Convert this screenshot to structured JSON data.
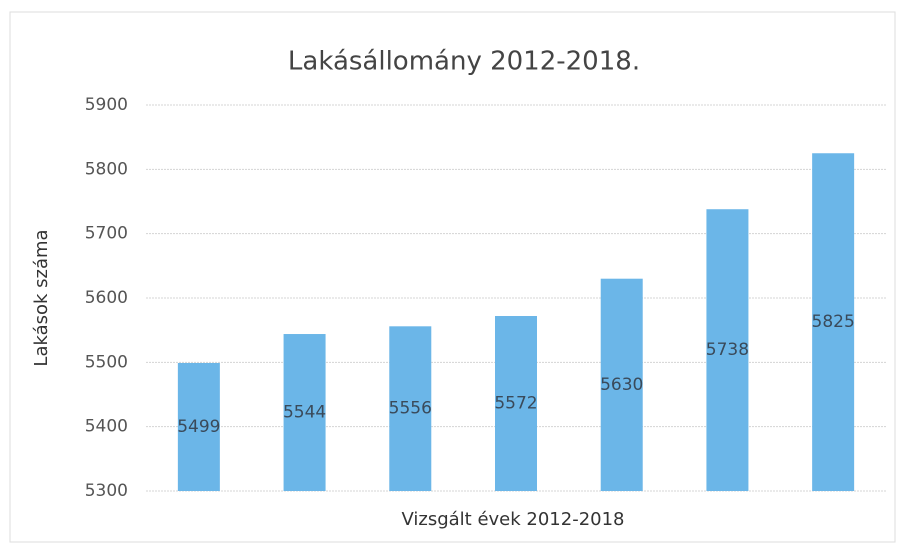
{
  "chart_data": {
    "type": "bar",
    "title": "Lakásállomány 2012-2018.",
    "x_label": "Vizsgált évek 2012-2018",
    "y_label": "Lakások száma",
    "categories": [
      null,
      null,
      null,
      null,
      null,
      null,
      null
    ],
    "values": [
      5499,
      5544,
      5556,
      5572,
      5630,
      5738,
      5825
    ],
    "color": "#6bb6e8",
    "ylim": [
      5300,
      5900
    ],
    "yticks": [
      5300,
      5400,
      5500,
      5600,
      5700,
      5800,
      5900
    ],
    "grid": true
  }
}
